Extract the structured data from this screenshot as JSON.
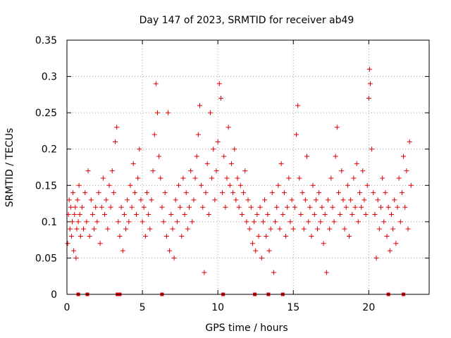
{
  "chart_data": {
    "type": "scatter",
    "title": "Day 147 of 2023, SRMTID for receiver ab49",
    "xlabel": "GPS time / hours",
    "ylabel": "SRMTID / TECUs",
    "xlim": [
      0,
      24
    ],
    "ylim": [
      0,
      0.35
    ],
    "x_ticks": [
      0,
      5,
      10,
      15,
      20
    ],
    "x_tick_labels": [
      "0",
      "5",
      "10",
      "15",
      "20"
    ],
    "y_ticks": [
      0,
      0.05,
      0.1,
      0.15,
      0.2,
      0.25,
      0.3,
      0.35
    ],
    "y_tick_labels": [
      "0",
      "0.05",
      "0.1",
      "0.15",
      "0.2",
      "0.25",
      "0.3",
      "0.35"
    ],
    "grid": true,
    "marker": "+",
    "series": [
      {
        "name": "SRMTID",
        "color": "#e00000",
        "points": [
          [
            0.05,
            0.07
          ],
          [
            0.1,
            0.11
          ],
          [
            0.15,
            0.13
          ],
          [
            0.2,
            0.09
          ],
          [
            0.25,
            0.12
          ],
          [
            0.3,
            0.08
          ],
          [
            0.35,
            0.1
          ],
          [
            0.4,
            0.14
          ],
          [
            0.45,
            0.06
          ],
          [
            0.5,
            0.11
          ],
          [
            0.55,
            0.12
          ],
          [
            0.6,
            0.05
          ],
          [
            0.65,
            0.09
          ],
          [
            0.7,
            0.13
          ],
          [
            0.75,
            0.1
          ],
          [
            0.8,
            0.15
          ],
          [
            0.85,
            0.11
          ],
          [
            0.9,
            0.08
          ],
          [
            1.0,
            0.12
          ],
          [
            1.1,
            0.09
          ],
          [
            1.2,
            0.14
          ],
          [
            1.3,
            0.1
          ],
          [
            1.4,
            0.17
          ],
          [
            1.5,
            0.08
          ],
          [
            1.6,
            0.13
          ],
          [
            1.7,
            0.11
          ],
          [
            1.8,
            0.09
          ],
          [
            1.9,
            0.12
          ],
          [
            2.0,
            0.1
          ],
          [
            2.1,
            0.14
          ],
          [
            2.2,
            0.07
          ],
          [
            2.3,
            0.12
          ],
          [
            2.4,
            0.16
          ],
          [
            2.5,
            0.11
          ],
          [
            2.6,
            0.13
          ],
          [
            2.7,
            0.09
          ],
          [
            2.8,
            0.15
          ],
          [
            2.9,
            0.12
          ],
          [
            3.0,
            0.17
          ],
          [
            3.1,
            0.14
          ],
          [
            3.2,
            0.21
          ],
          [
            3.3,
            0.23
          ],
          [
            3.4,
            0.1
          ],
          [
            3.5,
            0.08
          ],
          [
            3.6,
            0.12
          ],
          [
            3.7,
            0.06
          ],
          [
            3.8,
            0.11
          ],
          [
            3.9,
            0.09
          ],
          [
            4.0,
            0.13
          ],
          [
            4.1,
            0.1
          ],
          [
            4.2,
            0.15
          ],
          [
            4.3,
            0.12
          ],
          [
            4.4,
            0.18
          ],
          [
            4.5,
            0.14
          ],
          [
            4.6,
            0.11
          ],
          [
            4.7,
            0.16
          ],
          [
            4.8,
            0.2
          ],
          [
            4.9,
            0.13
          ],
          [
            5.0,
            0.1
          ],
          [
            5.1,
            0.12
          ],
          [
            5.2,
            0.08
          ],
          [
            5.3,
            0.14
          ],
          [
            5.4,
            0.11
          ],
          [
            5.5,
            0.09
          ],
          [
            5.6,
            0.13
          ],
          [
            5.7,
            0.17
          ],
          [
            5.8,
            0.22
          ],
          [
            5.9,
            0.29
          ],
          [
            6.0,
            0.25
          ],
          [
            6.1,
            0.19
          ],
          [
            6.2,
            0.16
          ],
          [
            6.3,
            0.12
          ],
          [
            6.4,
            0.1
          ],
          [
            6.5,
            0.14
          ],
          [
            6.6,
            0.08
          ],
          [
            6.7,
            0.25
          ],
          [
            6.8,
            0.06
          ],
          [
            6.9,
            0.11
          ],
          [
            7.0,
            0.09
          ],
          [
            7.1,
            0.05
          ],
          [
            7.2,
            0.13
          ],
          [
            7.3,
            0.1
          ],
          [
            7.4,
            0.15
          ],
          [
            7.5,
            0.12
          ],
          [
            7.6,
            0.08
          ],
          [
            7.7,
            0.16
          ],
          [
            7.8,
            0.11
          ],
          [
            7.9,
            0.14
          ],
          [
            8.0,
            0.09
          ],
          [
            8.1,
            0.12
          ],
          [
            8.2,
            0.17
          ],
          [
            8.3,
            0.1
          ],
          [
            8.4,
            0.13
          ],
          [
            8.5,
            0.16
          ],
          [
            8.6,
            0.19
          ],
          [
            8.7,
            0.22
          ],
          [
            8.8,
            0.26
          ],
          [
            8.9,
            0.15
          ],
          [
            9.0,
            0.12
          ],
          [
            9.1,
            0.03
          ],
          [
            9.2,
            0.14
          ],
          [
            9.3,
            0.18
          ],
          [
            9.4,
            0.11
          ],
          [
            9.5,
            0.25
          ],
          [
            9.6,
            0.16
          ],
          [
            9.7,
            0.2
          ],
          [
            9.8,
            0.13
          ],
          [
            9.9,
            0.17
          ],
          [
            10.0,
            0.21
          ],
          [
            10.1,
            0.29
          ],
          [
            10.2,
            0.27
          ],
          [
            10.3,
            0.14
          ],
          [
            10.4,
            0.19
          ],
          [
            10.5,
            0.12
          ],
          [
            10.6,
            0.16
          ],
          [
            10.7,
            0.23
          ],
          [
            10.8,
            0.15
          ],
          [
            10.9,
            0.18
          ],
          [
            11.0,
            0.14
          ],
          [
            11.1,
            0.2
          ],
          [
            11.2,
            0.13
          ],
          [
            11.3,
            0.16
          ],
          [
            11.4,
            0.12
          ],
          [
            11.5,
            0.15
          ],
          [
            11.6,
            0.11
          ],
          [
            11.7,
            0.14
          ],
          [
            11.8,
            0.17
          ],
          [
            11.9,
            0.1
          ],
          [
            12.0,
            0.13
          ],
          [
            12.1,
            0.09
          ],
          [
            12.2,
            0.12
          ],
          [
            12.3,
            0.07
          ],
          [
            12.4,
            0.1
          ],
          [
            12.5,
            0.06
          ],
          [
            12.6,
            0.11
          ],
          [
            12.7,
            0.08
          ],
          [
            12.8,
            0.12
          ],
          [
            12.9,
            0.05
          ],
          [
            13.0,
            0.1
          ],
          [
            13.1,
            0.13
          ],
          [
            13.2,
            0.08
          ],
          [
            13.3,
            0.11
          ],
          [
            13.4,
            0.06
          ],
          [
            13.5,
            0.09
          ],
          [
            13.6,
            0.14
          ],
          [
            13.7,
            0.03
          ],
          [
            13.8,
            0.1
          ],
          [
            13.9,
            0.12
          ],
          [
            14.0,
            0.15
          ],
          [
            14.1,
            0.09
          ],
          [
            14.2,
            0.18
          ],
          [
            14.3,
            0.11
          ],
          [
            14.4,
            0.14
          ],
          [
            14.5,
            0.08
          ],
          [
            14.6,
            0.12
          ],
          [
            14.7,
            0.16
          ],
          [
            14.8,
            0.1
          ],
          [
            14.9,
            0.13
          ],
          [
            15.0,
            0.09
          ],
          [
            15.1,
            0.12
          ],
          [
            15.2,
            0.22
          ],
          [
            15.3,
            0.26
          ],
          [
            15.4,
            0.16
          ],
          [
            15.5,
            0.11
          ],
          [
            15.6,
            0.14
          ],
          [
            15.7,
            0.09
          ],
          [
            15.8,
            0.13
          ],
          [
            15.9,
            0.19
          ],
          [
            16.0,
            0.1
          ],
          [
            16.1,
            0.12
          ],
          [
            16.2,
            0.08
          ],
          [
            16.3,
            0.15
          ],
          [
            16.4,
            0.11
          ],
          [
            16.5,
            0.13
          ],
          [
            16.6,
            0.09
          ],
          [
            16.7,
            0.14
          ],
          [
            16.8,
            0.1
          ],
          [
            16.9,
            0.12
          ],
          [
            17.0,
            0.07
          ],
          [
            17.1,
            0.11
          ],
          [
            17.2,
            0.03
          ],
          [
            17.3,
            0.13
          ],
          [
            17.4,
            0.09
          ],
          [
            17.5,
            0.16
          ],
          [
            17.6,
            0.12
          ],
          [
            17.7,
            0.1
          ],
          [
            17.8,
            0.19
          ],
          [
            17.9,
            0.23
          ],
          [
            18.0,
            0.14
          ],
          [
            18.1,
            0.11
          ],
          [
            18.2,
            0.17
          ],
          [
            18.3,
            0.13
          ],
          [
            18.4,
            0.09
          ],
          [
            18.5,
            0.12
          ],
          [
            18.6,
            0.15
          ],
          [
            18.7,
            0.08
          ],
          [
            18.8,
            0.13
          ],
          [
            18.9,
            0.11
          ],
          [
            19.0,
            0.16
          ],
          [
            19.1,
            0.12
          ],
          [
            19.2,
            0.18
          ],
          [
            19.3,
            0.1
          ],
          [
            19.4,
            0.14
          ],
          [
            19.5,
            0.12
          ],
          [
            19.6,
            0.17
          ],
          [
            19.7,
            0.13
          ],
          [
            19.8,
            0.11
          ],
          [
            19.9,
            0.15
          ],
          [
            20.0,
            0.27
          ],
          [
            20.05,
            0.31
          ],
          [
            20.1,
            0.29
          ],
          [
            20.2,
            0.2
          ],
          [
            20.3,
            0.14
          ],
          [
            20.4,
            0.11
          ],
          [
            20.5,
            0.05
          ],
          [
            20.6,
            0.13
          ],
          [
            20.7,
            0.09
          ],
          [
            20.8,
            0.12
          ],
          [
            20.9,
            0.16
          ],
          [
            21.0,
            0.1
          ],
          [
            21.1,
            0.14
          ],
          [
            21.2,
            0.08
          ],
          [
            21.3,
            0.12
          ],
          [
            21.4,
            0.06
          ],
          [
            21.5,
            0.11
          ],
          [
            21.6,
            0.09
          ],
          [
            21.7,
            0.13
          ],
          [
            21.8,
            0.07
          ],
          [
            21.9,
            0.12
          ],
          [
            22.0,
            0.16
          ],
          [
            22.1,
            0.1
          ],
          [
            22.2,
            0.14
          ],
          [
            22.3,
            0.19
          ],
          [
            22.4,
            0.12
          ],
          [
            22.5,
            0.17
          ],
          [
            22.6,
            0.09
          ],
          [
            22.7,
            0.21
          ],
          [
            22.8,
            0.15
          ]
        ]
      },
      {
        "name": "zero-markers",
        "color": "#e00000",
        "marker": "square",
        "points": [
          [
            0.75,
            0
          ],
          [
            1.35,
            0
          ],
          [
            3.35,
            0
          ],
          [
            3.5,
            0
          ],
          [
            6.3,
            0
          ],
          [
            10.35,
            0
          ],
          [
            12.45,
            0
          ],
          [
            13.35,
            0
          ],
          [
            14.3,
            0
          ],
          [
            21.3,
            0
          ],
          [
            22.3,
            0
          ]
        ]
      }
    ]
  }
}
